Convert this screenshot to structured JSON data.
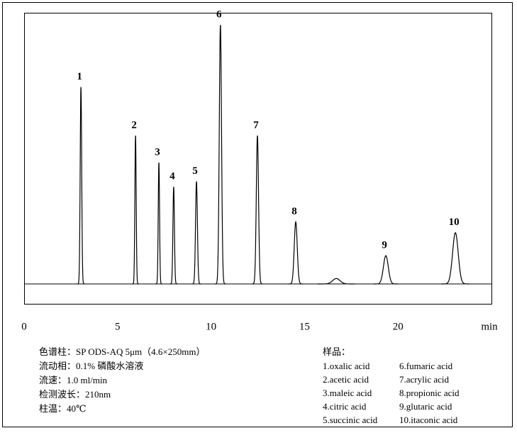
{
  "chart_data": {
    "type": "chromatogram",
    "x_label": "min",
    "xlim": [
      0,
      25
    ],
    "xticks": [
      0,
      5,
      10,
      15,
      20
    ],
    "ylim": [
      0,
      100
    ],
    "color": "#000000",
    "x": [
      3.04,
      5.96,
      7.21,
      8.0,
      9.22,
      10.5,
      12.48,
      14.53,
      16.7,
      19.35,
      23.07
    ],
    "values": [
      73,
      55,
      45,
      36,
      38,
      96,
      55,
      23,
      2,
      10.5,
      19
    ],
    "widths": [
      0.04,
      0.035,
      0.035,
      0.04,
      0.05,
      0.06,
      0.06,
      0.08,
      0.2,
      0.13,
      0.15
    ],
    "peak_labels": [
      "1",
      "2",
      "3",
      "4",
      "5",
      "6",
      "7",
      "8",
      null,
      "9",
      "10"
    ]
  },
  "conditions": [
    "色谱柱：SP ODS-AQ 5μm（4.6×250mm）",
    "流动相：0.1% 磷酸水溶液",
    "流速：1.0 ml/min",
    "检测波长：210nm",
    "柱温：40℃"
  ],
  "sample_title": "样品：",
  "samples": [
    "1.oxalic acid",
    "2.acetic acid",
    "3.maleic acid",
    "4.citric acid",
    "5.succinic acid",
    "6.fumaric acid",
    "7.acrylic acid",
    "8.propionic acid",
    "9.glutaric acid",
    "10.itaconic acid"
  ]
}
